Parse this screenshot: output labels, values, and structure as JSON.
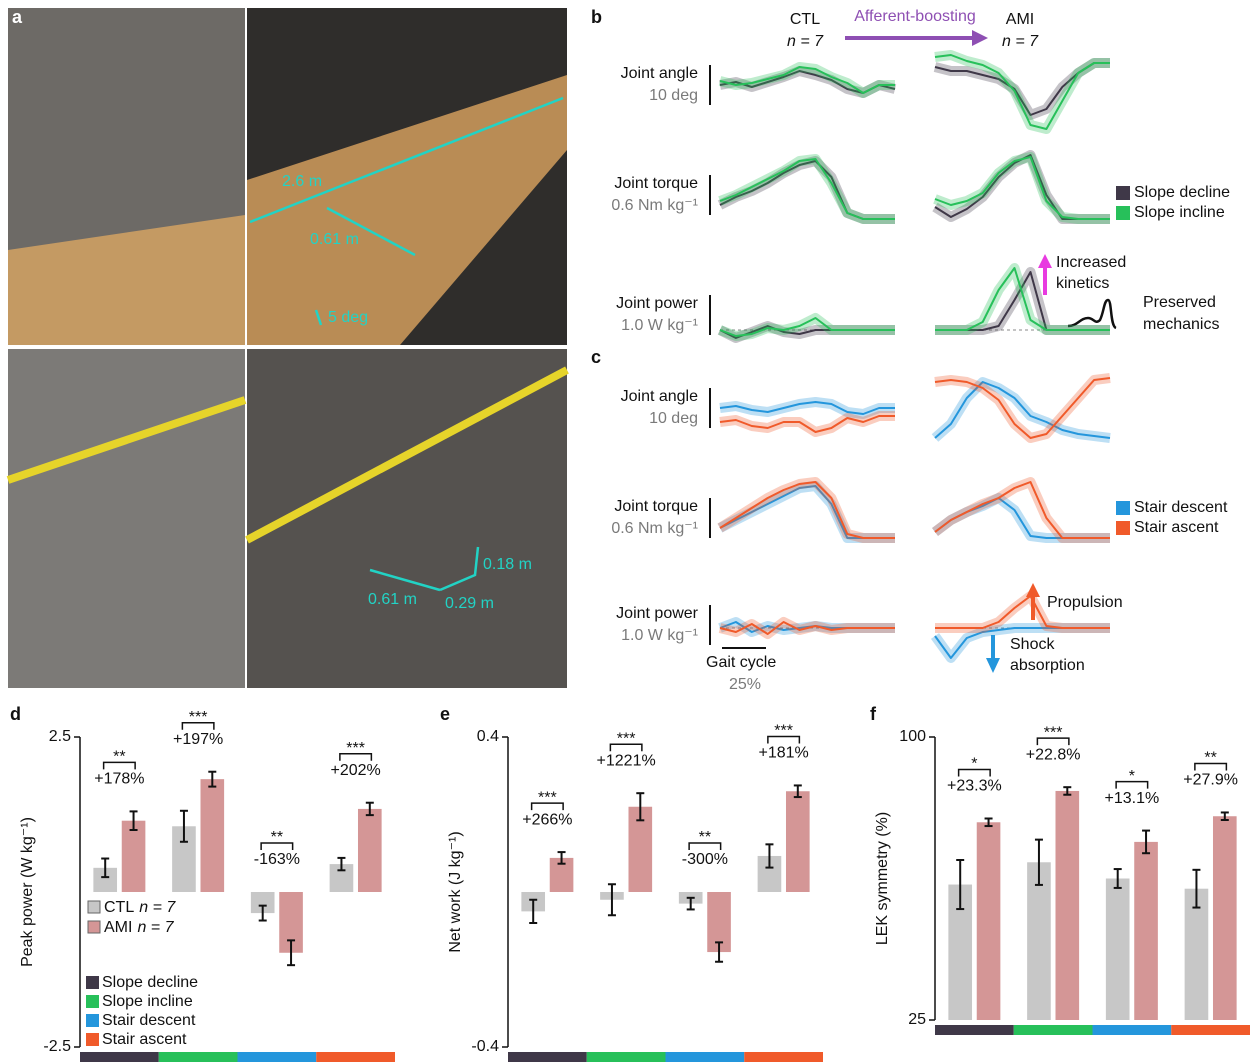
{
  "panel_labels": [
    "a",
    "b",
    "c",
    "d",
    "e",
    "f"
  ],
  "photo_annotations": {
    "top": [
      "2.6 m",
      "0.61 m",
      "5 deg"
    ],
    "bottom": [
      "0.18 m",
      "0.61 m",
      "0.29 m"
    ]
  },
  "traces": {
    "ctl_label": "CTL",
    "ctl_n": "n = 7",
    "arrow_label": "Afferent-boosting",
    "ami_label": "AMI",
    "ami_n": "n = 7",
    "rows": [
      {
        "name": "Joint angle",
        "scale": "10 deg"
      },
      {
        "name": "Joint torque",
        "scale": "0.6 Nm kg⁻¹"
      },
      {
        "name": "Joint power",
        "scale": "1.0 W kg⁻¹"
      }
    ],
    "slope_legend": [
      {
        "name": "Slope decline",
        "color": "#3f3848"
      },
      {
        "name": "Slope incline",
        "color": "#27c05a"
      }
    ],
    "stair_legend": [
      {
        "name": "Stair descent",
        "color": "#2496dc"
      },
      {
        "name": "Stair ascent",
        "color": "#f05a2a"
      }
    ],
    "annotations": {
      "increased": "Increased",
      "kinetics": "kinetics",
      "preserved": "Preserved",
      "mechanics": "mechanics",
      "propulsion": "Propulsion",
      "shock": "Shock",
      "absorption": "absorption",
      "gait_cycle": "Gait cycle",
      "gait_scale": "25%"
    }
  },
  "chart_data": [
    {
      "type": "bar",
      "ylabel": "Peak power (W kg⁻¹)",
      "categories": [
        "Slope decline",
        "Slope incline",
        "Stair descent",
        "Stair ascent"
      ],
      "category_colors": [
        "#3f3848",
        "#27c05a",
        "#2496dc",
        "#f05a2a"
      ],
      "series": [
        {
          "name": "CTL",
          "sample_size": "n = 7",
          "color": "#c7c7c7",
          "values": [
            0.39,
            1.06,
            -0.34,
            0.45
          ],
          "errors": [
            0.15,
            0.25,
            0.12,
            0.1
          ]
        },
        {
          "name": "AMI",
          "sample_size": "n = 7",
          "color": "#d49696",
          "values": [
            1.15,
            1.82,
            -0.98,
            1.34
          ],
          "errors": [
            0.15,
            0.12,
            0.2,
            0.1
          ]
        }
      ],
      "change_labels": [
        "+178%",
        "+197%",
        "-163%",
        "+202%"
      ],
      "significance": [
        "**",
        "***",
        "**",
        "***"
      ],
      "ylim": [
        -2.5,
        2.5
      ],
      "yticks": [
        -2.5,
        2.5
      ]
    },
    {
      "type": "bar",
      "ylabel": "Net work (J kg⁻¹)",
      "category_colors": [
        "#3f3848",
        "#27c05a",
        "#2496dc",
        "#f05a2a"
      ],
      "series": [
        {
          "color": "#c7c7c7",
          "values": [
            -0.05,
            -0.02,
            -0.03,
            0.093
          ],
          "errors": [
            0.03,
            0.04,
            0.015,
            0.03
          ]
        },
        {
          "color": "#d49696",
          "values": [
            0.088,
            0.22,
            -0.155,
            0.26
          ],
          "errors": [
            0.015,
            0.035,
            0.025,
            0.015
          ]
        }
      ],
      "change_labels": [
        "+266%",
        "+1221%",
        "-300%",
        "+181%"
      ],
      "significance": [
        "***",
        "***",
        "**",
        "***"
      ],
      "ylim": [
        -0.4,
        0.4
      ],
      "yticks": [
        -0.4,
        0.4
      ]
    },
    {
      "type": "bar",
      "ylabel": "LEK symmetry (%)",
      "category_colors": [
        "#3f3848",
        "#27c05a",
        "#2496dc",
        "#f05a2a"
      ],
      "series": [
        {
          "color": "#c7c7c7",
          "values": [
            60.9,
            66.8,
            62.5,
            59.8
          ],
          "errors": [
            6.5,
            6,
            2.5,
            5
          ]
        },
        {
          "color": "#d49696",
          "values": [
            77.4,
            85.7,
            72.2,
            79
          ],
          "errors": [
            1,
            1,
            3,
            1
          ]
        }
      ],
      "change_labels": [
        "+23.3%",
        "+22.8%",
        "+13.1%",
        "+27.9%"
      ],
      "significance": [
        "*",
        "***",
        "*",
        "**"
      ],
      "ylim": [
        25,
        100
      ],
      "yticks": [
        25,
        100
      ]
    }
  ]
}
